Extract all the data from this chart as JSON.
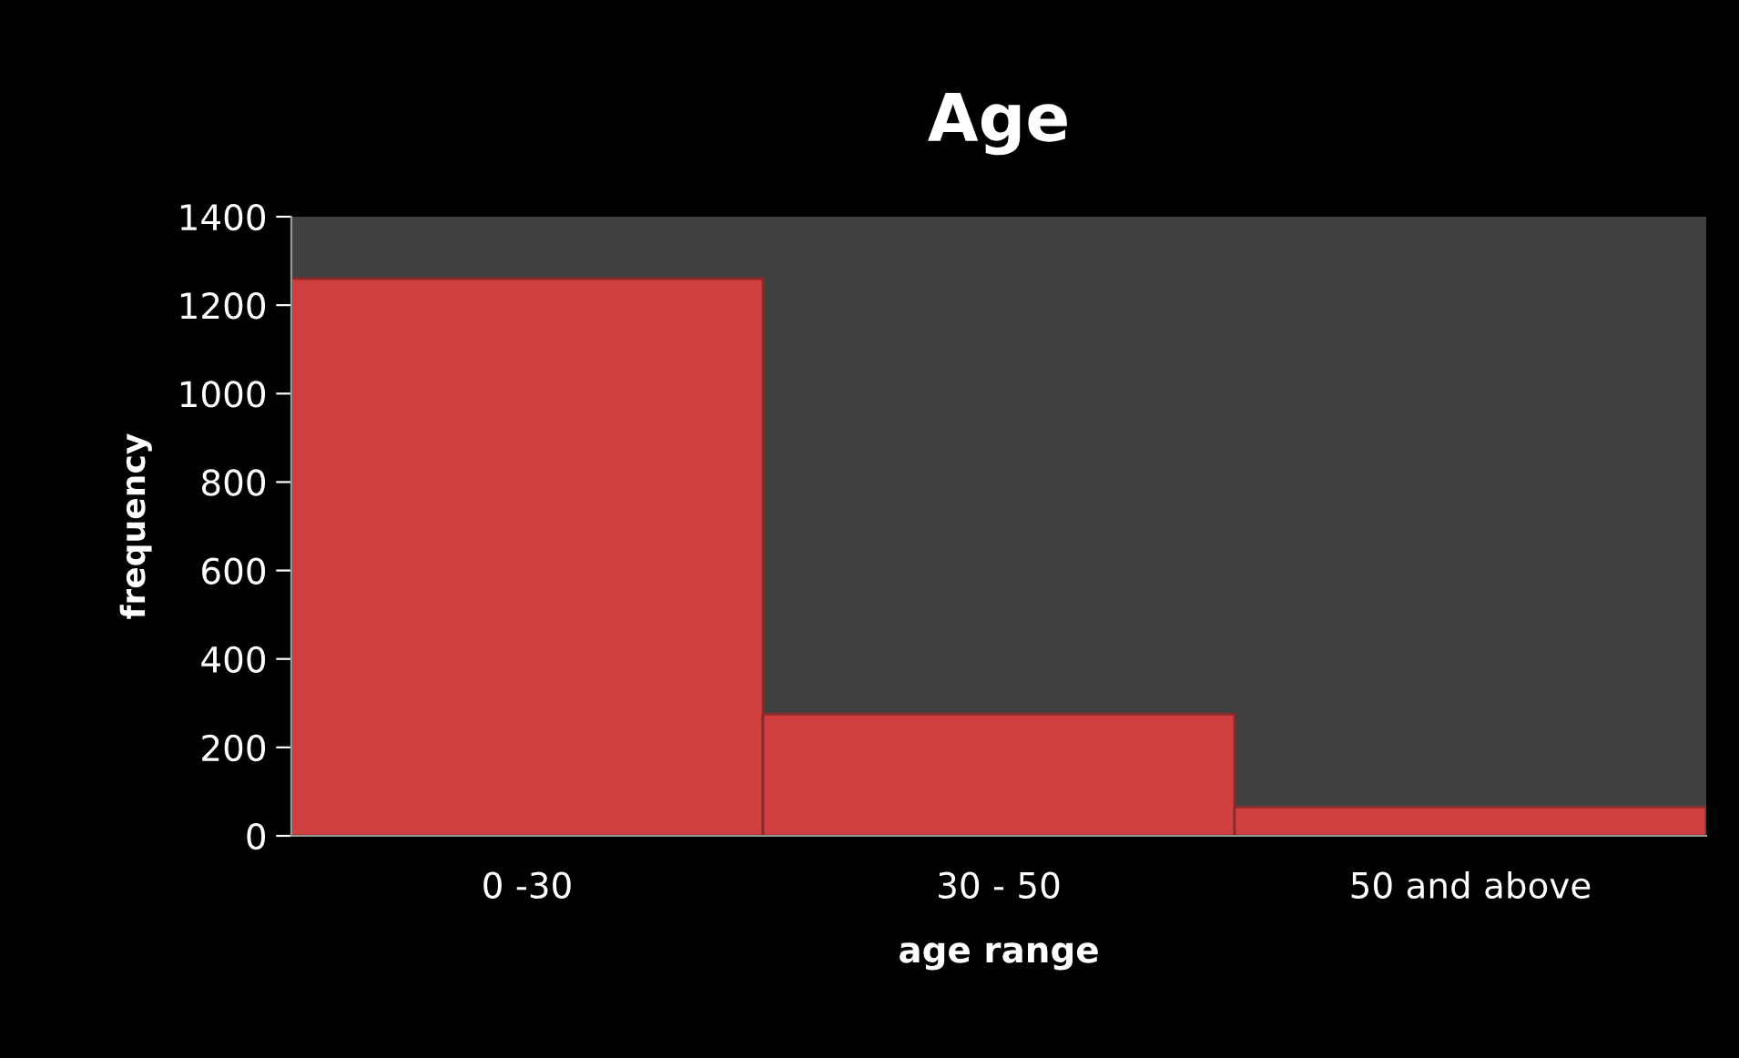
{
  "chart_data": {
    "type": "bar",
    "title": "Age",
    "xlabel": "age range",
    "ylabel": "frequency",
    "categories": [
      "0 -30",
      "30 - 50",
      "50 and above"
    ],
    "values": [
      1260,
      275,
      65
    ],
    "color": "#d04040",
    "ylim": [
      0,
      1400
    ],
    "yticks": [
      0,
      200,
      400,
      600,
      800,
      1000,
      1200,
      1400
    ],
    "grid": false
  }
}
